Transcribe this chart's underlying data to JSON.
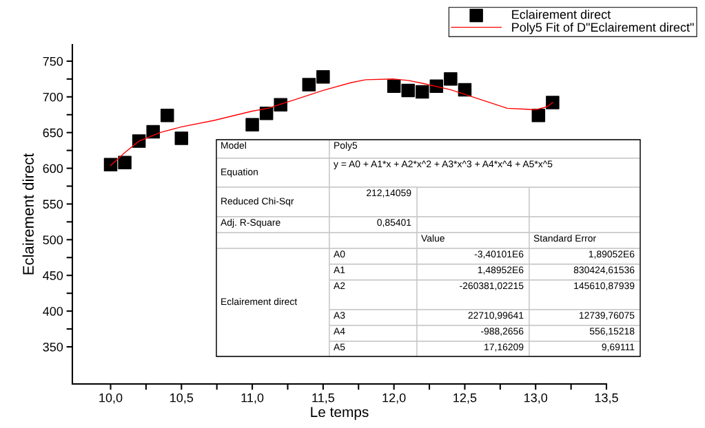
{
  "chart_data": {
    "type": "scatter",
    "xlabel": "Le temps",
    "ylabel": "Eclairement direct",
    "xlim": [
      9.73,
      13.5
    ],
    "ylim": [
      298,
      773
    ],
    "xticks": [
      {
        "value": 10.0,
        "label": "10,0"
      },
      {
        "value": 10.25,
        "label": null
      },
      {
        "value": 10.5,
        "label": "10,5"
      },
      {
        "value": 10.75,
        "label": null
      },
      {
        "value": 11.0,
        "label": "11,0"
      },
      {
        "value": 11.25,
        "label": null
      },
      {
        "value": 11.5,
        "label": "11,5"
      },
      {
        "value": 11.75,
        "label": null
      },
      {
        "value": 12.0,
        "label": "12,0"
      },
      {
        "value": 12.25,
        "label": null
      },
      {
        "value": 12.5,
        "label": "12,5"
      },
      {
        "value": 12.75,
        "label": null
      },
      {
        "value": 13.0,
        "label": "13,0"
      },
      {
        "value": 13.25,
        "label": null
      },
      {
        "value": 13.5,
        "label": "13,5"
      }
    ],
    "yticks": [
      350,
      {
        "value": 375,
        "label": null
      },
      400,
      {
        "value": 425,
        "label": null
      },
      450,
      {
        "value": 475,
        "label": null
      },
      500,
      {
        "value": 525,
        "label": null
      },
      550,
      {
        "value": 575,
        "label": null
      },
      600,
      {
        "value": 625,
        "label": null
      },
      650,
      {
        "value": 675,
        "label": null
      },
      700,
      {
        "value": 725,
        "label": null
      },
      750
    ],
    "grid": false,
    "legend": "top right",
    "series": [
      {
        "name": "Eclairement direct",
        "color": "#000000",
        "marker": "square",
        "x": [
          10.0,
          10.1,
          10.2,
          10.3,
          10.4,
          10.5,
          11.0,
          11.1,
          11.2,
          11.4,
          11.5,
          12.0,
          12.1,
          12.2,
          12.3,
          12.4,
          12.5,
          13.02,
          13.12
        ],
        "values": [
          605,
          608,
          638,
          651,
          674,
          642,
          661,
          677,
          689,
          717,
          728,
          715,
          709,
          707,
          715,
          725,
          710,
          674,
          692
        ]
      },
      {
        "name": "Poly5 Fit of D\"Eclairement direct\"",
        "type": "line",
        "color": "#ff0000",
        "marker": "none",
        "line_style": "solid",
        "x": [
          10.0,
          10.1,
          10.2,
          10.35,
          10.5,
          10.73,
          11.0,
          11.11,
          11.3,
          11.5,
          11.7,
          11.8,
          12.0,
          12.1,
          12.2,
          12.4,
          12.6,
          12.8,
          13.0,
          13.08,
          13.12
        ],
        "values": [
          604,
          622,
          638,
          650,
          658,
          667,
          680,
          684,
          696,
          709,
          720,
          724,
          725,
          723,
          719,
          710,
          697,
          684,
          682,
          686,
          692
        ]
      }
    ],
    "annotations": [
      "Model",
      "Poly5",
      "Equation",
      "y = A0 + A1*x + A2*x^2 + A3*x^3 + A4*x^4 + A5*x^5",
      "Reduced Chi-Sqr",
      "212,14059",
      "Adj. R-Square",
      "0,85401",
      "Value",
      "Standard Error",
      "Eclairement direct",
      "A0",
      "-3,40101E6",
      "1,89052E6",
      "A1",
      "1,48952E6",
      "830424,61536",
      "A2",
      "-260381,02215",
      "145610,87939",
      "A3",
      "22710,99641",
      "12739,76075",
      "A4",
      "-988,2656",
      "556,15218",
      "A5",
      "17,16209",
      "9,69111"
    ]
  }
}
